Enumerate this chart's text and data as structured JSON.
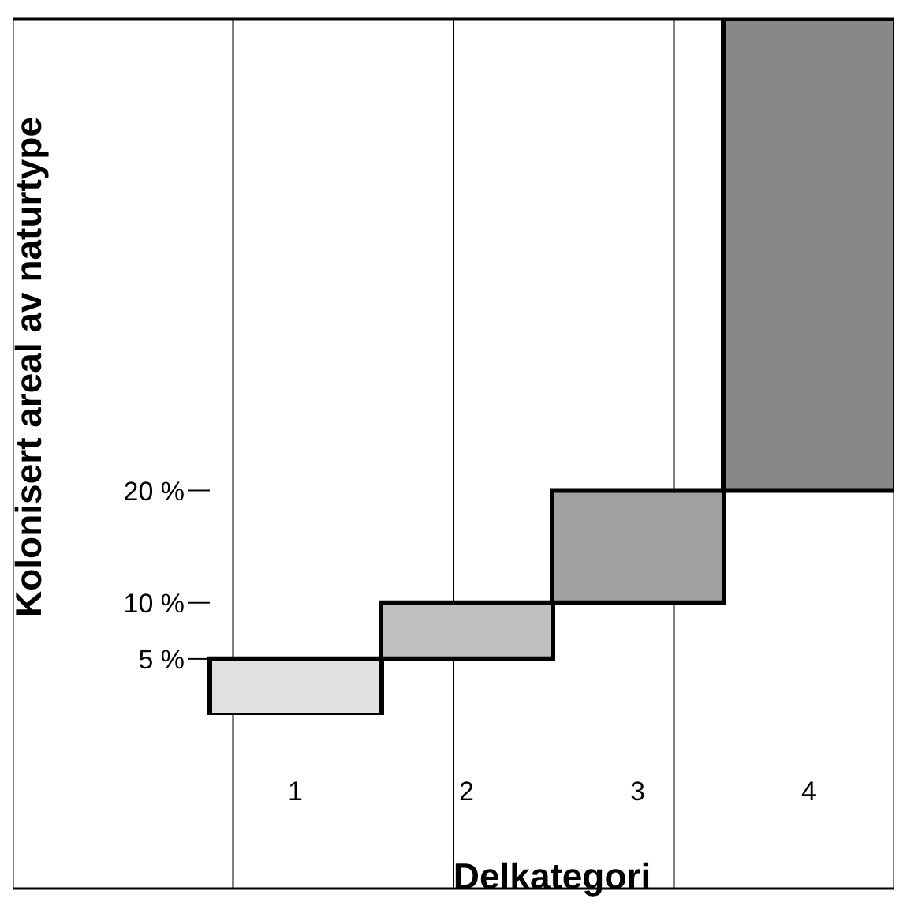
{
  "chart_data": {
    "type": "bar",
    "xlabel": "Delkategori",
    "ylabel": "Kolonisert areal av naturtype",
    "categories": [
      "1",
      "2",
      "3",
      "4"
    ],
    "values": [
      5,
      5,
      10,
      42
    ],
    "base": [
      0,
      5,
      10,
      20
    ],
    "colors": [
      "#e0e0e0",
      "#c0c0c0",
      "#a0a0a0",
      "#888888"
    ],
    "ylim": [
      0,
      62
    ],
    "yticks": [
      {
        "value": 5,
        "label": "5 %"
      },
      {
        "value": 10,
        "label": "10 %"
      },
      {
        "value": 20,
        "label": "20 %"
      }
    ]
  }
}
